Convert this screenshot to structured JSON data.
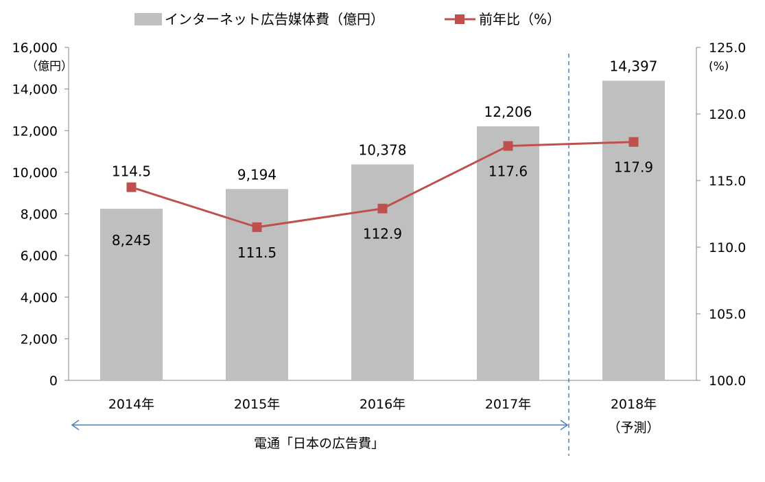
{
  "chart_data": {
    "type": "bar+line",
    "categories": [
      "2014年",
      "2015年",
      "2016年",
      "2017年",
      "2018年"
    ],
    "category_sublabels": [
      "",
      "",
      "",
      "",
      "（予測）"
    ],
    "series": [
      {
        "name": "インターネット広告媒体費（億円）",
        "type": "bar",
        "axis": "left",
        "color": "#bfbfbf",
        "values": [
          8245,
          9194,
          10378,
          12206,
          14397
        ],
        "labels": [
          "8,245",
          "9,194",
          "10,378",
          "12,206",
          "14,397"
        ],
        "label_positions": [
          "inside",
          "above",
          "above",
          "above",
          "above"
        ]
      },
      {
        "name": "前年比（%）",
        "type": "line",
        "axis": "right",
        "color": "#c0504d",
        "values": [
          114.5,
          111.5,
          112.9,
          117.6,
          117.9
        ],
        "labels": [
          "114.5",
          "111.5",
          "112.9",
          "117.6",
          "117.9"
        ],
        "label_positions": [
          "above",
          "below",
          "below",
          "below",
          "below"
        ]
      }
    ],
    "left_axis": {
      "unit_label": "（億円）",
      "ylim": [
        0,
        16000
      ],
      "ticks": [
        0,
        2000,
        4000,
        6000,
        8000,
        10000,
        12000,
        14000,
        16000
      ],
      "tick_labels": [
        "0",
        "2,000",
        "4,000",
        "6,000",
        "8,000",
        "10,000",
        "12,000",
        "14,000",
        "16,000"
      ]
    },
    "right_axis": {
      "unit_label": "(%)",
      "ylim": [
        100,
        125
      ],
      "ticks": [
        100,
        105,
        110,
        115,
        120,
        125
      ],
      "tick_labels": [
        "100.0",
        "105.0",
        "110.0",
        "115.0",
        "120.0",
        "125.0"
      ]
    },
    "legend_position": "top",
    "grid": false,
    "annotations": {
      "source_range_text": "電通「日本の広告費」",
      "forecast_divider": "dashed line between 2017年 and 2018年",
      "arrow_color": "#4f81bd",
      "divider_color": "#4f81bd"
    }
  }
}
